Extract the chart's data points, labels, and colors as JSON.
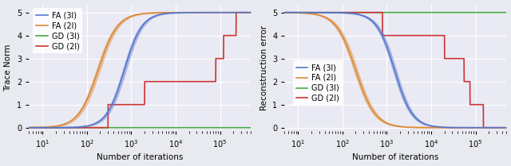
{
  "fig_width": 6.4,
  "fig_height": 2.09,
  "dpi": 100,
  "bg_color": "#e8eaf0",
  "plot_bg_color": "#eaeaf4",
  "grid_color": "white",
  "left_ylabel": "Trace Norm",
  "right_ylabel": "Reconstruction error",
  "xlabel": "Number of iterations",
  "ylim_left": [
    -0.15,
    5.35
  ],
  "ylim_right": [
    -0.15,
    5.35
  ],
  "yticks": [
    0,
    1,
    2,
    3,
    4,
    5
  ],
  "xlim": [
    5,
    500000
  ],
  "colors": {
    "FA_3l": "#5577cc",
    "FA_2l": "#dd8833",
    "GD_3l": "#44aa44",
    "GD_2l": "#cc3333"
  },
  "legend_labels": [
    "FA (3l)",
    "FA (2l)",
    "GD (3l)",
    "GD (2l)"
  ]
}
